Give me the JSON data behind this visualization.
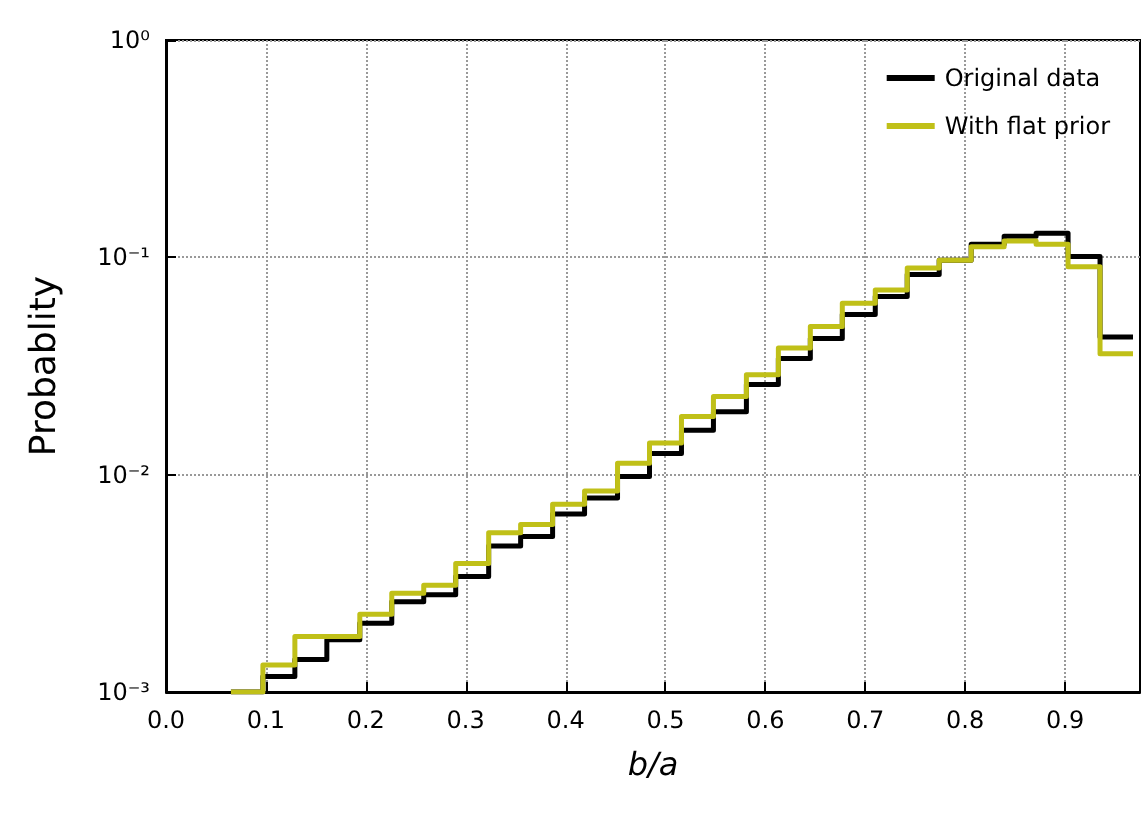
{
  "chart_data": {
    "type": "histogram",
    "xlabel": "b/a",
    "ylabel": "Probablity",
    "bins": [
      0.065,
      0.097,
      0.129,
      0.161,
      0.194,
      0.226,
      0.258,
      0.29,
      0.323,
      0.355,
      0.387,
      0.419,
      0.452,
      0.484,
      0.516,
      0.548,
      0.581,
      0.613,
      0.645,
      0.677,
      0.71,
      0.742,
      0.774,
      0.806,
      0.839,
      0.871,
      0.903,
      0.935,
      0.968
    ],
    "series": [
      {
        "name": "Original data",
        "color": "#000000",
        "values": [
          0.001,
          0.00118,
          0.00141,
          0.00174,
          0.00207,
          0.0026,
          0.0028,
          0.0034,
          0.0047,
          0.0052,
          0.0066,
          0.0078,
          0.0098,
          0.0125,
          0.016,
          0.0195,
          0.026,
          0.0342,
          0.0423,
          0.0546,
          0.066,
          0.0833,
          0.097,
          0.115,
          0.125,
          0.129,
          0.101,
          0.043
        ]
      },
      {
        "name": "With flat prior",
        "color": "#c0c018",
        "values": [
          0.001,
          0.00133,
          0.0018,
          0.0018,
          0.00228,
          0.00285,
          0.0031,
          0.0039,
          0.0054,
          0.0059,
          0.0073,
          0.0084,
          0.0113,
          0.014,
          0.0185,
          0.0229,
          0.0288,
          0.0383,
          0.048,
          0.0615,
          0.0708,
          0.0894,
          0.097,
          0.112,
          0.119,
          0.115,
          0.0906,
          0.036
        ]
      }
    ],
    "xlim": [
      0,
      0.975
    ],
    "xticks": [
      {
        "value": 0,
        "label": "0.0"
      },
      {
        "value": 0.1,
        "label": "0.1"
      },
      {
        "value": 0.2,
        "label": "0.2"
      },
      {
        "value": 0.3,
        "label": "0.3"
      },
      {
        "value": 0.4,
        "label": "0.4"
      },
      {
        "value": 0.5,
        "label": "0.5"
      },
      {
        "value": 0.6,
        "label": "0.6"
      },
      {
        "value": 0.7,
        "label": "0.7"
      },
      {
        "value": 0.8,
        "label": "0.8"
      },
      {
        "value": 0.9,
        "label": "0.9"
      }
    ],
    "ylim": [
      0.001,
      1
    ],
    "log": "y",
    "yticks": [
      {
        "value": 0.001,
        "label": "10⁻³"
      },
      {
        "value": 0.01,
        "label": "10⁻²"
      },
      {
        "value": 0.1,
        "label": "10⁻¹"
      },
      {
        "value": 1,
        "label": "10⁰"
      }
    ],
    "grid": true,
    "legend": "top right",
    "line_style": "solid"
  }
}
